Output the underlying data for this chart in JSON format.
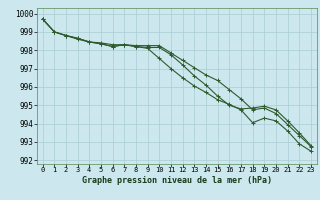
{
  "title": "Graphe pression niveau de la mer (hPa)",
  "background_color": "#cce8ee",
  "grid_color": "#aaccd4",
  "line_color": "#2d5a2d",
  "x_labels": [
    "0",
    "1",
    "2",
    "3",
    "4",
    "5",
    "6",
    "7",
    "8",
    "9",
    "10",
    "11",
    "12",
    "13",
    "14",
    "15",
    "16",
    "17",
    "18",
    "19",
    "20",
    "21",
    "22",
    "23"
  ],
  "ylim": [
    991.8,
    1000.3
  ],
  "yticks": [
    992,
    993,
    994,
    995,
    996,
    997,
    998,
    999,
    1000
  ],
  "series1": [
    999.7,
    999.0,
    998.8,
    998.65,
    998.45,
    998.35,
    998.2,
    998.3,
    998.2,
    998.1,
    997.55,
    997.0,
    996.5,
    996.05,
    995.7,
    995.3,
    995.05,
    994.75,
    994.05,
    994.3,
    994.15,
    993.6,
    992.9,
    992.5
  ],
  "series2": [
    999.7,
    999.0,
    998.8,
    998.65,
    998.45,
    998.35,
    998.2,
    998.3,
    998.2,
    998.15,
    998.15,
    997.75,
    997.2,
    996.6,
    996.1,
    995.5,
    995.0,
    994.8,
    994.85,
    994.95,
    994.75,
    994.15,
    993.5,
    992.8
  ],
  "series3": [
    999.7,
    999.0,
    998.8,
    998.6,
    998.45,
    998.4,
    998.3,
    998.3,
    998.25,
    998.25,
    998.25,
    997.85,
    997.45,
    997.05,
    996.65,
    996.35,
    995.85,
    995.35,
    994.75,
    994.85,
    994.55,
    993.95,
    993.35,
    992.75
  ],
  "ylabel_fontsize": 5.5,
  "xlabel_fontsize": 6.0,
  "tick_fontsize": 5.0,
  "line_width": 0.8,
  "marker_size": 3.5
}
